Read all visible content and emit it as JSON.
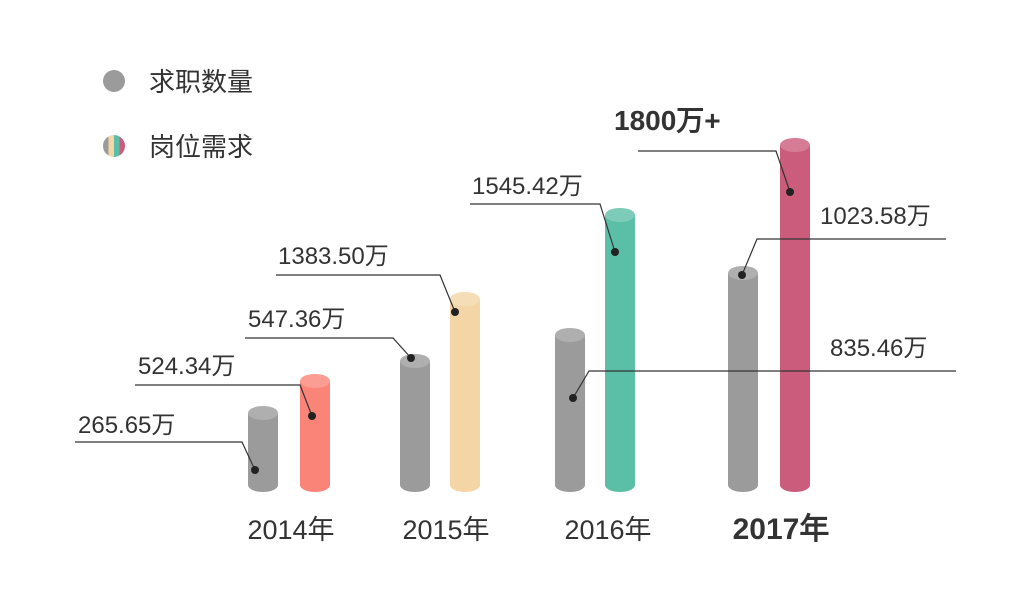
{
  "legend": [
    {
      "label": "求职数量",
      "color": "#9b9b9b"
    },
    {
      "label": "岗位需求",
      "colors": [
        "#9b9b9b",
        "#f3d5a6",
        "#5bbfa7",
        "#cc5c7b"
      ]
    }
  ],
  "chart_data": {
    "type": "bar",
    "categories": [
      "2014年",
      "2015年",
      "2016年",
      "2017年"
    ],
    "series": [
      {
        "name": "求职数量",
        "values": [
          265.65,
          547.36,
          835.46,
          1023.58
        ],
        "labels": [
          "265.65万",
          "547.36万",
          "835.46万",
          "1023.58万"
        ],
        "color": "#9b9b9b"
      },
      {
        "name": "岗位需求",
        "values": [
          524.34,
          1383.5,
          1545.42,
          1800
        ],
        "labels": [
          "524.34万",
          "1383.50万",
          "1545.42万",
          "1800万+"
        ],
        "colors": [
          "#fa8478",
          "#f3d5a6",
          "#5bbfa7",
          "#cc5c7b"
        ]
      }
    ],
    "highlight_category": "2017年"
  }
}
